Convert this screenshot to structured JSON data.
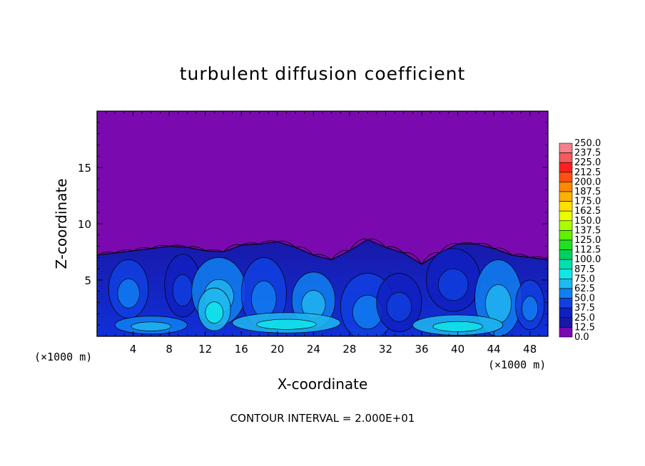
{
  "chart_data": {
    "type": "contour",
    "title": "turbulent diffusion coefficient",
    "xlabel": "X-coordinate",
    "ylabel": "Z-coordinate",
    "x_unit": "(×1000 m)",
    "z_unit": "(×1000 m)",
    "footer": "CONTOUR INTERVAL = 2.000E+01",
    "xlim": [
      0,
      50
    ],
    "ylim": [
      0,
      20
    ],
    "x_ticks": [
      4,
      8,
      12,
      16,
      20,
      24,
      28,
      32,
      36,
      40,
      44,
      48
    ],
    "y_ticks": [
      5,
      10,
      15
    ],
    "colorbar": {
      "levels": [
        "250.0",
        "237.5",
        "225.0",
        "212.5",
        "200.0",
        "187.5",
        "175.0",
        "162.5",
        "150.0",
        "137.5",
        "125.0",
        "112.5",
        "100.0",
        "87.5",
        "75.0",
        "62.5",
        "50.0",
        "37.5",
        "25.0",
        "12.5",
        "0.0"
      ],
      "colors": [
        "#f4808c",
        "#f25c5c",
        "#ff2020",
        "#ff5010",
        "#ff8800",
        "#ffb000",
        "#ffe000",
        "#e8ff00",
        "#a8ff00",
        "#60f000",
        "#20e020",
        "#00d060",
        "#00e0b0",
        "#10e8e8",
        "#20b8f0",
        "#1080f0",
        "#1040e0",
        "#1020c0",
        "#1818a8",
        "#7a0ab0"
      ]
    },
    "boundary_layer_top_km": [
      7.2,
      7.4,
      7.6,
      7.8,
      8.0,
      7.9,
      7.6,
      7.5,
      8.1,
      8.2,
      8.4,
      7.9,
      7.2,
      6.8,
      7.6,
      8.6,
      7.9,
      7.4,
      6.4,
      7.4,
      8.2,
      8.2,
      7.8,
      7.2,
      7.0,
      6.8
    ]
  }
}
